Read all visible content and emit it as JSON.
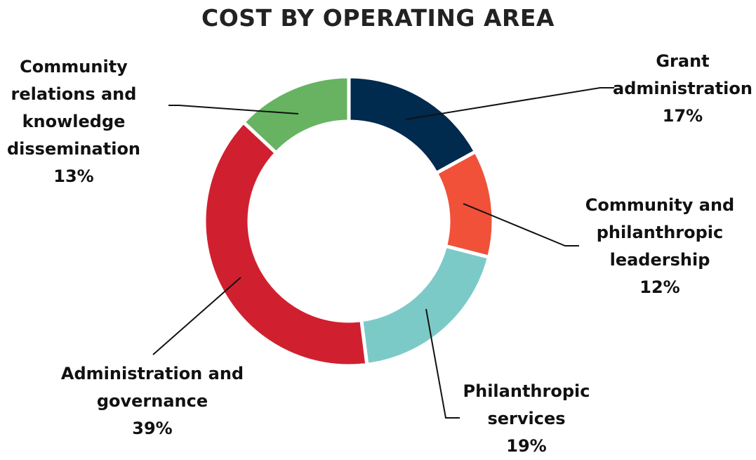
{
  "chart_data": {
    "type": "donut",
    "title": "COST BY OPERATING AREA",
    "categories": [
      "Grant administration",
      "Community and philanthropic leadership",
      "Philanthropic services",
      "Administration and governance",
      "Community relations and knowledge dissemination"
    ],
    "values": [
      17,
      12,
      19,
      39,
      13
    ],
    "value_labels": [
      "17%",
      "12%",
      "19%",
      "39%",
      "13%"
    ],
    "colors": [
      "#002a4e",
      "#f05138",
      "#7ccac7",
      "#d0202f",
      "#67b361"
    ]
  }
}
